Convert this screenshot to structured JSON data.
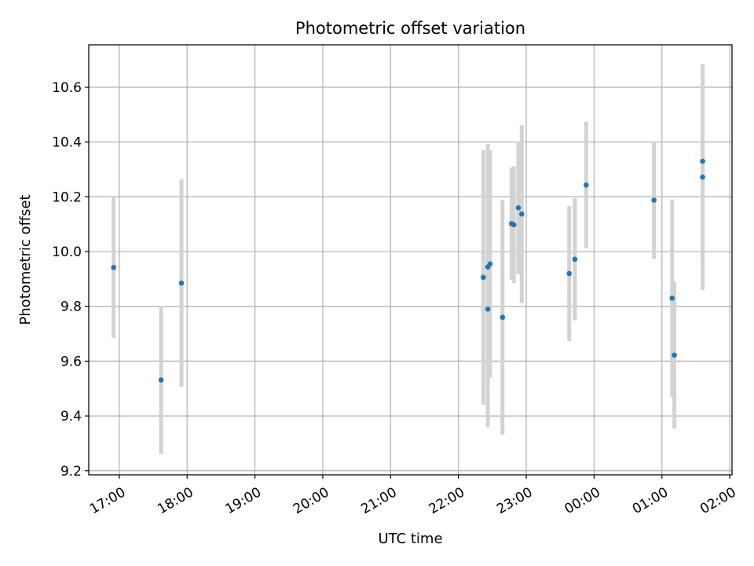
{
  "chart_data": {
    "type": "scatter",
    "title": "Photometric offset variation",
    "xlabel": "UTC time",
    "ylabel": "Photometric offset",
    "x_ticks": [
      "17:00",
      "18:00",
      "19:00",
      "20:00",
      "21:00",
      "22:00",
      "23:00",
      "00:00",
      "01:00",
      "02:00"
    ],
    "y_ticks": [
      "9.2",
      "9.4",
      "9.6",
      "9.8",
      "10.0",
      "10.2",
      "10.4",
      "10.6"
    ],
    "xlim": [
      "16:33",
      "02:02"
    ],
    "ylim": [
      9.185,
      10.755
    ],
    "grid": true,
    "series": [
      {
        "marker_color": "#1f77b4",
        "errorbar_color": "#d3d3d3",
        "points": [
          {
            "x": "16:55",
            "y": 9.942,
            "err": 0.257
          },
          {
            "x": "17:37",
            "y": 9.531,
            "err": 0.27
          },
          {
            "x": "17:55",
            "y": 9.885,
            "err": 0.378
          },
          {
            "x": "22:22",
            "y": 9.906,
            "err": 0.465
          },
          {
            "x": "22:26",
            "y": 9.79,
            "err": 0.431
          },
          {
            "x": "22:26",
            "y": 9.944,
            "err": 0.449
          },
          {
            "x": "22:28",
            "y": 9.955,
            "err": 0.415
          },
          {
            "x": "22:39",
            "y": 9.76,
            "err": 0.428
          },
          {
            "x": "22:47",
            "y": 10.102,
            "err": 0.205
          },
          {
            "x": "22:49",
            "y": 10.098,
            "err": 0.213
          },
          {
            "x": "22:53",
            "y": 10.16,
            "err": 0.242
          },
          {
            "x": "22:56",
            "y": 10.137,
            "err": 0.324
          },
          {
            "x": "23:38",
            "y": 9.92,
            "err": 0.247
          },
          {
            "x": "23:43",
            "y": 9.972,
            "err": 0.223
          },
          {
            "x": "23:53",
            "y": 10.243,
            "err": 0.231
          },
          {
            "x": "00:53",
            "y": 10.188,
            "err": 0.215
          },
          {
            "x": "01:09",
            "y": 9.83,
            "err": 0.36
          },
          {
            "x": "01:11",
            "y": 9.622,
            "err": 0.268
          },
          {
            "x": "01:36",
            "y": 10.33,
            "err": 0.355
          },
          {
            "x": "01:36",
            "y": 10.272,
            "err": 0.412
          }
        ]
      }
    ]
  }
}
